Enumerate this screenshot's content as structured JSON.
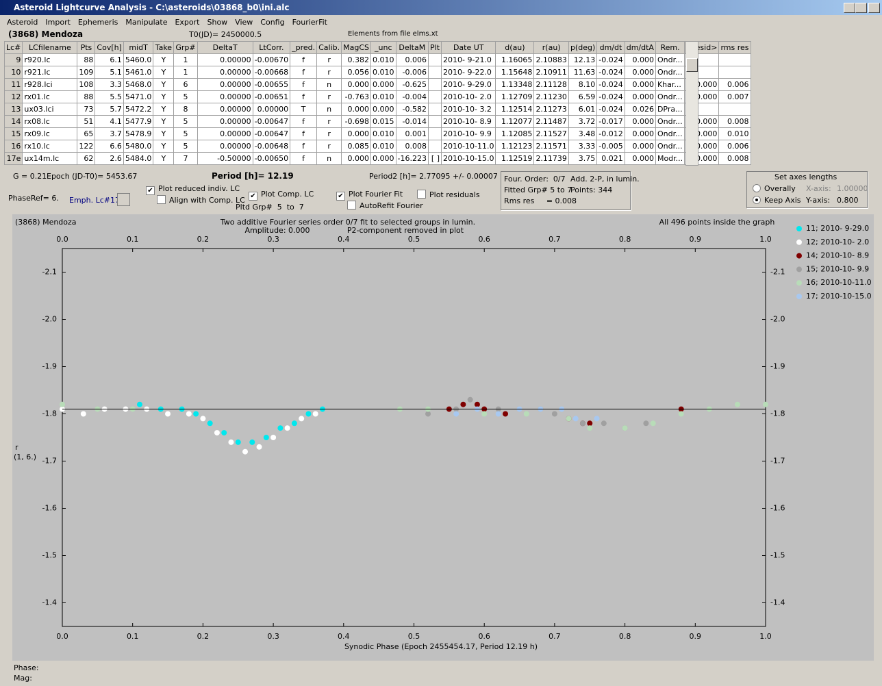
{
  "window": {
    "title": "Asteroid Lightcurve Analysis - C:\\asteroids\\03868_b0\\ini.alc"
  },
  "menu": [
    "Asteroid",
    "Import",
    "Ephemeris",
    "Manipulate",
    "Export",
    "Show",
    "View",
    "Config",
    "FourierFit"
  ],
  "header": {
    "asteroid": "(3868) Mendoza",
    "t0": "T0(JD)= 2450000.5",
    "elements": "Elements from file elms.xt"
  },
  "table": {
    "columns": [
      "Lc#",
      "LCfilename",
      "Pts",
      "Cov[h]",
      "midT",
      "Take",
      "Grp#",
      "DeltaT",
      "LtCorr.",
      "_pred.",
      "Calib.",
      "MagCS",
      "_unc",
      "DeltaM",
      "Plt",
      "Date UT",
      "d(au)",
      "r(au)",
      "p(deg)",
      "dm/dt",
      "dm/dtA",
      "Rem.",
      "<resid>",
      "rms res"
    ],
    "rows": [
      [
        "9",
        "r920.lc",
        "88",
        "6.1",
        "5460.0",
        "Y",
        "1",
        "0.00000",
        "-0.00670",
        "f",
        "r",
        "0.382",
        "0.010",
        "0.006",
        null,
        "2010- 9-21.0",
        "1.16065",
        "2.10883",
        "12.13",
        "-0.024",
        "0.000",
        "Ondr...",
        null,
        null
      ],
      [
        "10",
        "r921.lc",
        "109",
        "5.1",
        "5461.0",
        "Y",
        "1",
        "0.00000",
        "-0.00668",
        "f",
        "r",
        "0.056",
        "0.010",
        "-0.006",
        null,
        "2010- 9-22.0",
        "1.15648",
        "2.10911",
        "11.63",
        "-0.024",
        "0.000",
        "Ondr...",
        null,
        null
      ],
      [
        "11",
        "r928.lci",
        "108",
        "3.3",
        "5468.0",
        "Y",
        "6",
        "0.00000",
        "-0.00655",
        "f",
        "n",
        "0.000",
        "0.000",
        "-0.625",
        null,
        "2010- 9-29.0",
        "1.13348",
        "2.11128",
        "8.10",
        "-0.024",
        "0.000",
        "Khar...",
        "0.000",
        "0.006"
      ],
      [
        "12",
        "rx01.lc",
        "88",
        "5.5",
        "5471.0",
        "Y",
        "5",
        "0.00000",
        "-0.00651",
        "f",
        "r",
        "-0.763",
        "0.010",
        "-0.004",
        null,
        "2010-10- 2.0",
        "1.12709",
        "2.11230",
        "6.59",
        "-0.024",
        "0.000",
        "Ondr...",
        "0.000",
        "0.007"
      ],
      [
        "13",
        "ux03.lci",
        "73",
        "5.7",
        "5472.2",
        "Y",
        "8",
        "0.00000",
        "0.00000",
        "T",
        "n",
        "0.000",
        "0.000",
        "-0.582",
        null,
        "2010-10- 3.2",
        "1.12514",
        "2.11273",
        "6.01",
        "-0.024",
        "0.026",
        "DPra...",
        null,
        null
      ],
      [
        "14",
        "rx08.lc",
        "51",
        "4.1",
        "5477.9",
        "Y",
        "5",
        "0.00000",
        "-0.00647",
        "f",
        "r",
        "-0.698",
        "0.015",
        "-0.014",
        null,
        "2010-10- 8.9",
        "1.12077",
        "2.11487",
        "3.72",
        "-0.017",
        "0.000",
        "Ondr...",
        "0.000",
        "0.008"
      ],
      [
        "15",
        "rx09.lc",
        "65",
        "3.7",
        "5478.9",
        "Y",
        "5",
        "0.00000",
        "-0.00647",
        "f",
        "r",
        "0.000",
        "0.010",
        "0.001",
        null,
        "2010-10- 9.9",
        "1.12085",
        "2.11527",
        "3.48",
        "-0.012",
        "0.000",
        "Ondr...",
        "0.000",
        "0.010"
      ],
      [
        "16",
        "rx10.lc",
        "122",
        "6.6",
        "5480.0",
        "Y",
        "5",
        "0.00000",
        "-0.00648",
        "f",
        "r",
        "0.085",
        "0.010",
        "0.008",
        null,
        "2010-10-11.0",
        "1.12123",
        "2.11571",
        "3.33",
        "-0.005",
        "0.000",
        "Ondr...",
        "0.000",
        "0.006"
      ],
      [
        "17e",
        "ux14m.lc",
        "62",
        "2.6",
        "5484.0",
        "Y",
        "7",
        "-0.50000",
        "-0.00650",
        "f",
        "n",
        "0.000",
        "0.000",
        "-16.223",
        "[ ]",
        "2010-10-15.0",
        "1.12519",
        "2.11739",
        "3.75",
        "0.021",
        "0.000",
        "Modr...",
        "0.000",
        "0.008"
      ]
    ]
  },
  "controls": {
    "g": "G = 0.21",
    "epoch": "Epoch (JD-T0)= 5453.67",
    "period": "Period [h]= 12.19",
    "period2": "Period2 [h]= 2.77095 +/- 0.00007",
    "phase_ref": "PhaseRef= 6.",
    "emph": "Emph. Lc#17:",
    "plot_reduced": {
      "label": "Plot reduced indiv. LC",
      "checked": true
    },
    "align": {
      "label": "Align with Comp. LC",
      "checked": false
    },
    "plot_comp": {
      "label": "Plot Comp. LC",
      "checked": true
    },
    "pltd_grp": "Pltd Grp#  5  to  7",
    "plot_fourier": {
      "label": "Plot Fourier Fit",
      "checked": true
    },
    "autorefit": {
      "label": "AutoRefit Fourier",
      "checked": false
    },
    "plot_resid": {
      "label": "Plot residuals",
      "checked": false
    }
  },
  "info": {
    "order": "Four. Order:  0/7",
    "add": "Add. 2-P, in lumin.",
    "fitted": "Fitted Grp# 5 to 7",
    "points": "Points: 344",
    "rms": "Rms res     = 0.008"
  },
  "axes_box": {
    "title": "Set axes lengths",
    "overally": {
      "label": "Overally",
      "selected": false
    },
    "keep": {
      "label": "Keep Axis",
      "selected": true
    },
    "x_label": "X-axis:",
    "x_value": "1.00000",
    "y_label": "Y-axis:",
    "y_value": "0.800"
  },
  "status": {
    "phase": "Phase:",
    "mag": "Mag:"
  },
  "chart_data": {
    "type": "scatter",
    "title": "Two additive Fourier series order 0/7 fit to selected groups in lumin.",
    "object": "(3868) Mendoza",
    "amplitude": "Amplitude: 0.000",
    "note": "P2-component removed in plot",
    "count_note": "All 496 points inside the graph",
    "x_label": "Synodic Phase (Epoch 2455454.17, Period 12.19 h)",
    "y_label": "r",
    "y_label2": "(1, 6.)",
    "xlim": [
      0,
      1
    ],
    "ylim": [
      -2.15,
      -1.35
    ],
    "y_inverted": true,
    "xticks": [
      {
        "value": 0,
        "label": "0.0"
      },
      0.1,
      0.2,
      0.3,
      0.4,
      0.5,
      0.6,
      0.7,
      0.8,
      0.9,
      {
        "value": 1,
        "label": "1.0"
      }
    ],
    "yticks": [
      -2.1,
      {
        "value": -2,
        "label": "-2.0"
      },
      -1.9,
      -1.8,
      -1.7,
      -1.6,
      -1.5,
      -1.4
    ],
    "fit_level": -1.81,
    "series": [
      {
        "name": "11; 2010- 9-29.0",
        "color": "#00e8ee",
        "x": [
          0.11,
          0.14,
          0.17,
          0.19,
          0.21,
          0.23,
          0.25,
          0.27,
          0.29,
          0.31,
          0.33,
          0.35,
          0.37
        ],
        "values": [
          -1.82,
          -1.81,
          -1.81,
          -1.8,
          -1.78,
          -1.76,
          -1.74,
          -1.74,
          -1.75,
          -1.77,
          -1.78,
          -1.8,
          -1.81
        ]
      },
      {
        "name": "12; 2010-10- 2.0",
        "color": "#ffffff",
        "x": [
          0,
          0.03,
          0.06,
          0.09,
          0.12,
          0.15,
          0.18,
          0.2,
          0.22,
          0.24,
          0.26,
          0.28,
          0.3,
          0.32,
          0.34,
          0.36
        ],
        "values": [
          -1.81,
          -1.8,
          -1.81,
          -1.81,
          -1.81,
          -1.8,
          -1.8,
          -1.79,
          -1.76,
          -1.74,
          -1.72,
          -1.73,
          -1.75,
          -1.77,
          -1.79,
          -1.8
        ]
      },
      {
        "name": "14; 2010-10- 8.9",
        "color": "#800000",
        "x": [
          0.55,
          0.57,
          0.59,
          0.6,
          0.63,
          0.72,
          0.74,
          0.75,
          0.88
        ],
        "values": [
          -1.81,
          -1.82,
          -1.82,
          -1.81,
          -1.8,
          -1.79,
          -1.78,
          -1.78,
          -1.81
        ]
      },
      {
        "name": "15; 2010-10- 9.9",
        "color": "#a0a0a0",
        "x": [
          0.52,
          0.56,
          0.58,
          0.62,
          0.68,
          0.7,
          0.74,
          0.77,
          0.8,
          0.83
        ],
        "values": [
          -1.8,
          -1.81,
          -1.83,
          -1.81,
          -1.81,
          -1.8,
          -1.78,
          -1.78,
          -1.77,
          -1.78
        ]
      },
      {
        "name": "16; 2010-10-11.0",
        "color": "#b8dcb8",
        "x": [
          0,
          0.05,
          0.1,
          0.48,
          0.52,
          0.6,
          0.66,
          0.72,
          0.75,
          0.8,
          0.84,
          0.88,
          0.92,
          0.96,
          1
        ],
        "values": [
          -1.82,
          -1.81,
          -1.81,
          -1.81,
          -1.81,
          -1.8,
          -1.8,
          -1.79,
          -1.77,
          -1.77,
          -1.78,
          -1.8,
          -1.81,
          -1.82,
          -1.82
        ]
      },
      {
        "name": "17; 2010-10-15.0",
        "color": "#a8c8f0",
        "x": [
          0.56,
          0.59,
          0.62,
          0.65,
          0.68,
          0.71,
          0.73,
          0.76
        ],
        "values": [
          -1.8,
          -1.81,
          -1.8,
          -1.81,
          -1.81,
          -1.81,
          -1.79,
          -1.79
        ]
      }
    ]
  }
}
